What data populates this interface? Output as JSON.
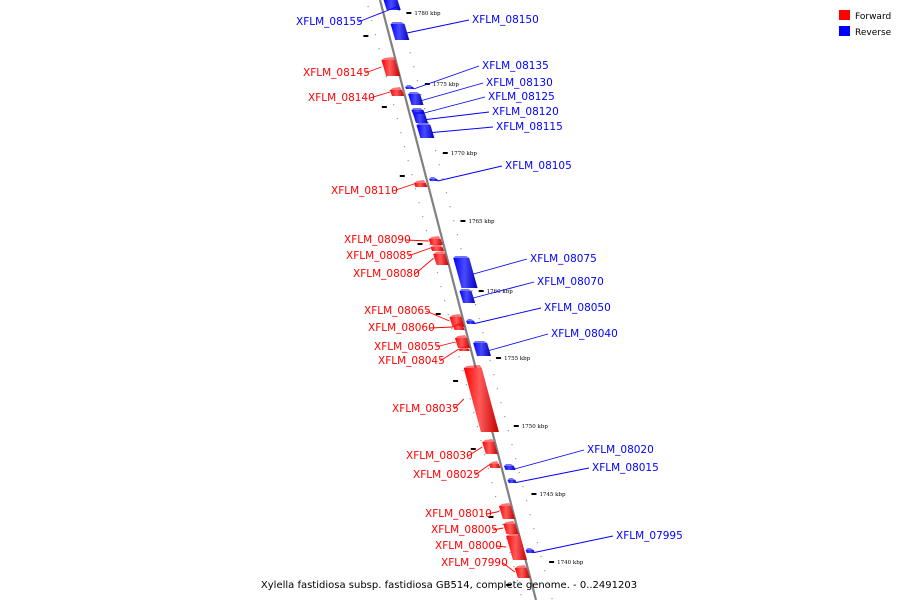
{
  "caption": "Xylella fastidiosa subsp. fastidiosa GB514, complete genome. - 0..2491203",
  "legend": [
    {
      "label": "Forward",
      "color": "#ff0000"
    },
    {
      "label": "Reverse",
      "color": "#0000ff"
    }
  ],
  "colors": {
    "forward": "#ff0000",
    "reverse": "#0000ff",
    "backbone": "#888888"
  },
  "ticks": [
    {
      "label": "1780 kbp",
      "pos_kbp": 1780
    },
    {
      "label": "1775 kbp",
      "pos_kbp": 1775
    },
    {
      "label": "1770 kbp",
      "pos_kbp": 1770
    },
    {
      "label": "1765 kbp",
      "pos_kbp": 1765
    },
    {
      "label": "1760 kbp",
      "pos_kbp": 1760
    },
    {
      "label": "1755 kbp",
      "pos_kbp": 1755
    },
    {
      "label": "1750 kbp",
      "pos_kbp": 1750
    },
    {
      "label": "1745 kbp",
      "pos_kbp": 1745
    },
    {
      "label": "1740 kbp",
      "pos_kbp": 1740
    }
  ],
  "genes": [
    {
      "name": "XFLM_08155",
      "strand": "reverse"
    },
    {
      "name": "XFLM_08150",
      "strand": "reverse"
    },
    {
      "name": "XFLM_08145",
      "strand": "forward"
    },
    {
      "name": "XFLM_08140",
      "strand": "forward"
    },
    {
      "name": "XFLM_08135",
      "strand": "reverse"
    },
    {
      "name": "XFLM_08130",
      "strand": "reverse"
    },
    {
      "name": "XFLM_08125",
      "strand": "reverse"
    },
    {
      "name": "XFLM_08120",
      "strand": "reverse"
    },
    {
      "name": "XFLM_08115",
      "strand": "reverse"
    },
    {
      "name": "XFLM_08110",
      "strand": "forward"
    },
    {
      "name": "XFLM_08105",
      "strand": "reverse"
    },
    {
      "name": "XFLM_08090",
      "strand": "forward"
    },
    {
      "name": "XFLM_08085",
      "strand": "forward"
    },
    {
      "name": "XFLM_08080",
      "strand": "forward"
    },
    {
      "name": "XFLM_08075",
      "strand": "reverse"
    },
    {
      "name": "XFLM_08070",
      "strand": "reverse"
    },
    {
      "name": "XFLM_08065",
      "strand": "forward"
    },
    {
      "name": "XFLM_08060",
      "strand": "forward"
    },
    {
      "name": "XFLM_08050",
      "strand": "reverse"
    },
    {
      "name": "XFLM_08055",
      "strand": "forward"
    },
    {
      "name": "XFLM_08045",
      "strand": "forward"
    },
    {
      "name": "XFLM_08040",
      "strand": "reverse"
    },
    {
      "name": "XFLM_08035",
      "strand": "forward"
    },
    {
      "name": "XFLM_08030",
      "strand": "forward"
    },
    {
      "name": "XFLM_08025",
      "strand": "forward"
    },
    {
      "name": "XFLM_08020",
      "strand": "reverse"
    },
    {
      "name": "XFLM_08015",
      "strand": "reverse"
    },
    {
      "name": "XFLM_08010",
      "strand": "forward"
    },
    {
      "name": "XFLM_08005",
      "strand": "forward"
    },
    {
      "name": "XFLM_08000",
      "strand": "forward"
    },
    {
      "name": "XFLM_07995",
      "strand": "reverse"
    },
    {
      "name": "XFLM_07990",
      "strand": "forward"
    }
  ]
}
